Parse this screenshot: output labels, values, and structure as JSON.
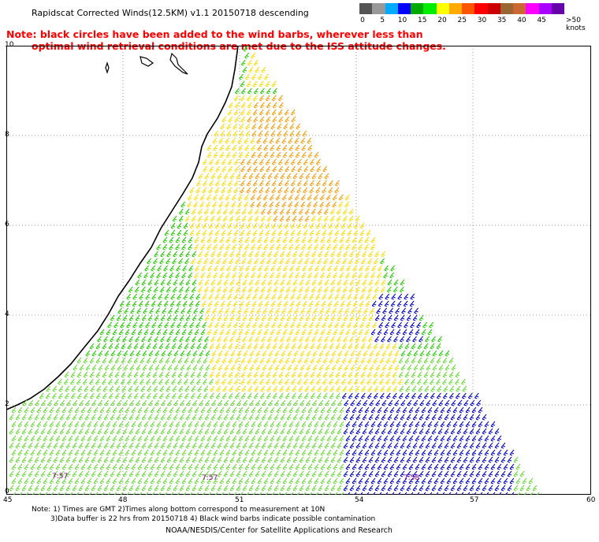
{
  "header": {
    "title": "Rapidscat Corrected Winds(12.5KM) v1.1 20150718 descending",
    "note_line1": "Note: black circles have been added to the wind barbs, wherever less than",
    "note_line2": "optimal wind retrieval conditions are met due to the ISS attitude changes."
  },
  "legend": {
    "units": ">50 knots",
    "labels": [
      "0",
      "5",
      "10",
      "15",
      "20",
      "25",
      "30",
      "35",
      "40",
      "45"
    ],
    "colors": [
      "#555555",
      "#999999",
      "#00aaff",
      "#0000ff",
      "#00aa00",
      "#00ee00",
      "#ffff00",
      "#ffaa00",
      "#ff5500",
      "#ff0000",
      "#cc0000",
      "#996633",
      "#cc6633",
      "#ff00ff",
      "#aa00ff",
      "#6600aa"
    ]
  },
  "map": {
    "lat_labels": [
      "10",
      "8",
      "6",
      "4",
      "2",
      "0"
    ],
    "lon_labels": [
      "45",
      "48",
      "51",
      "54",
      "57",
      "60"
    ],
    "time_labels": [
      "7:57",
      "7:57",
      "7:58"
    ],
    "barb_colors": {
      "green": "#22cc00",
      "yellow": "#ffdd00",
      "orange": "#ff9900",
      "brown": "#cc6600",
      "blue": "#0000cc",
      "light_green": "#66dd33"
    }
  },
  "footer": {
    "line1": "Note: 1) Times are GMT 2)Times along bottom correspond to measurement at 10N",
    "line2": "3)Data buffer is 22 hrs from 20150718 4) Black wind barbs indicate possible contamination",
    "credit": "NOAA/NESDIS/Center for Satellite Applications and Research"
  }
}
